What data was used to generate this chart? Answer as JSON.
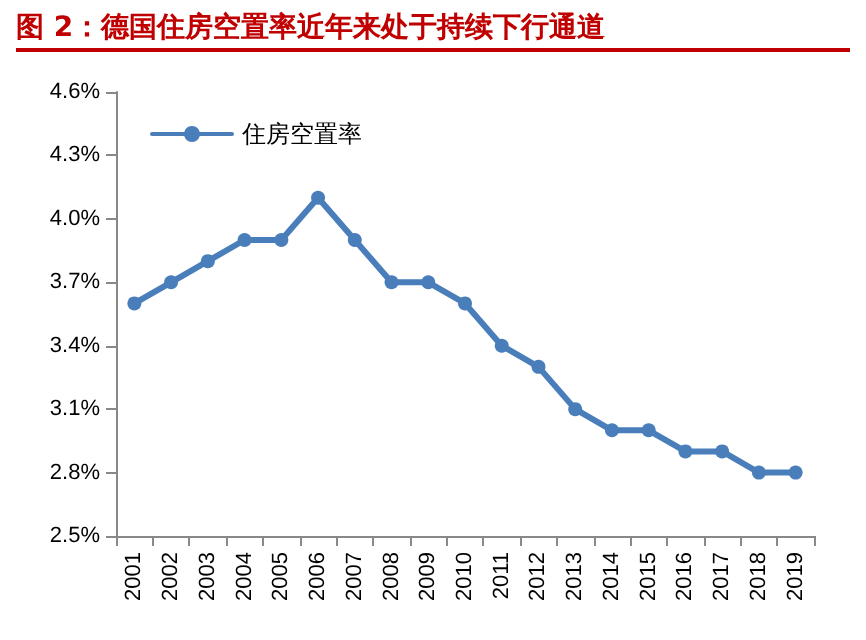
{
  "chart_data": {
    "type": "line",
    "title": "图 2：德国住房空置率近年来处于持续下行通道",
    "categories": [
      "2001",
      "2002",
      "2003",
      "2004",
      "2005",
      "2006",
      "2007",
      "2008",
      "2009",
      "2010",
      "2011",
      "2012",
      "2013",
      "2014",
      "2015",
      "2016",
      "2017",
      "2018",
      "2019"
    ],
    "series": [
      {
        "name": "住房空置率",
        "color": "#4a7ebb",
        "values": [
          3.6,
          3.7,
          3.8,
          3.9,
          3.9,
          4.1,
          3.9,
          3.7,
          3.7,
          3.6,
          3.4,
          3.3,
          3.1,
          3.0,
          3.0,
          2.9,
          2.9,
          2.8,
          2.8
        ]
      }
    ],
    "ylim": [
      2.5,
      4.6
    ],
    "yticks": [
      {
        "value": 2.5,
        "label": "2.5%"
      },
      {
        "value": 2.8,
        "label": "2.8%"
      },
      {
        "value": 3.1,
        "label": "3.1%"
      },
      {
        "value": 3.4,
        "label": "3.4%"
      },
      {
        "value": 3.7,
        "label": "3.7%"
      },
      {
        "value": 4.0,
        "label": "4.0%"
      },
      {
        "value": 4.3,
        "label": "4.3%"
      },
      {
        "value": 4.6,
        "label": "4.6%"
      }
    ],
    "grid": false,
    "legend": "top left",
    "marker": "circle",
    "line_style": "solid"
  }
}
